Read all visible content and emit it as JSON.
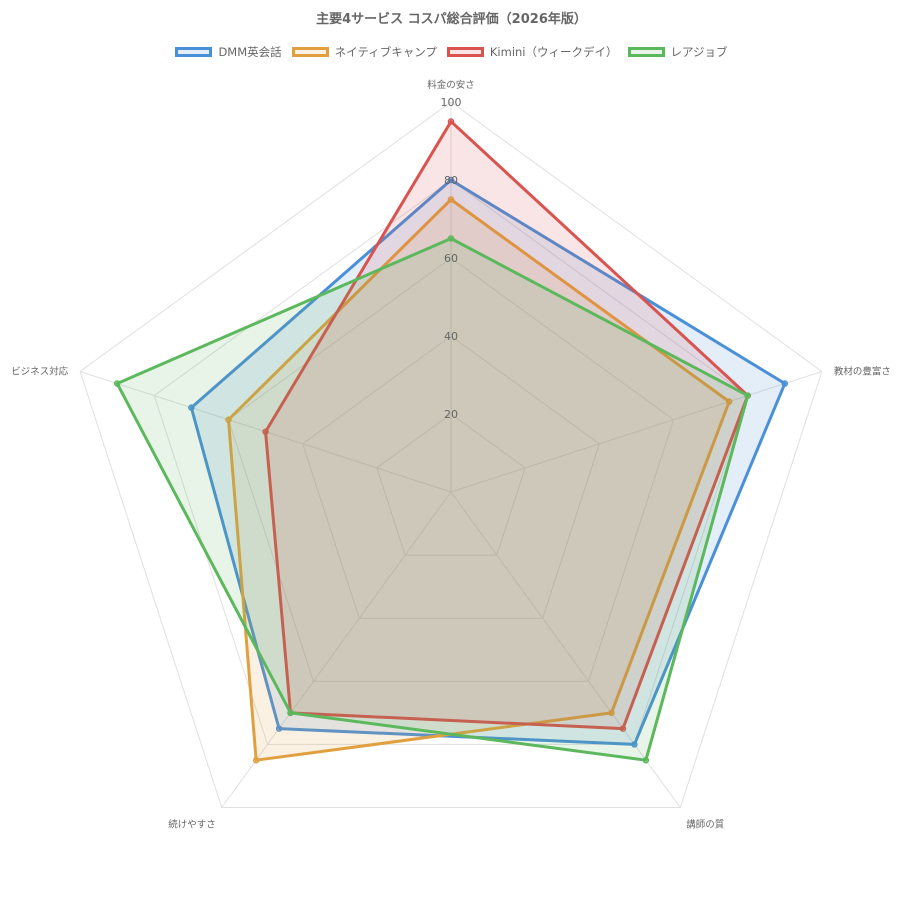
{
  "chart_data": {
    "type": "radar",
    "title": "主要4サービス コスパ総合評価（2026年版）",
    "axes": [
      "料金の安さ",
      "教材の豊富さ",
      "講師の質",
      "続けやすさ",
      "ビジネス対応"
    ],
    "r_range": [
      0,
      100
    ],
    "ticks": [
      20,
      40,
      60,
      80,
      100
    ],
    "grid": true,
    "legend_position": "top",
    "series": [
      {
        "name": "DMM英会話",
        "values": [
          80,
          90,
          80,
          75,
          70
        ],
        "color": "#4a90d9",
        "fill": "rgba(74,144,217,0.15)"
      },
      {
        "name": "ネイティブキャンプ",
        "values": [
          75,
          75,
          70,
          85,
          60
        ],
        "color": "#e0a040",
        "fill": "rgba(224,160,64,0.15)"
      },
      {
        "name": "Kimini（ウィークデイ）",
        "values": [
          95,
          80,
          75,
          70,
          50
        ],
        "color": "#d9534f",
        "fill": "rgba(217,83,79,0.15)"
      },
      {
        "name": "レアジョブ",
        "values": [
          65,
          80,
          85,
          70,
          90
        ],
        "color": "#5cb85c",
        "fill": "rgba(92,184,92,0.15)"
      }
    ]
  }
}
